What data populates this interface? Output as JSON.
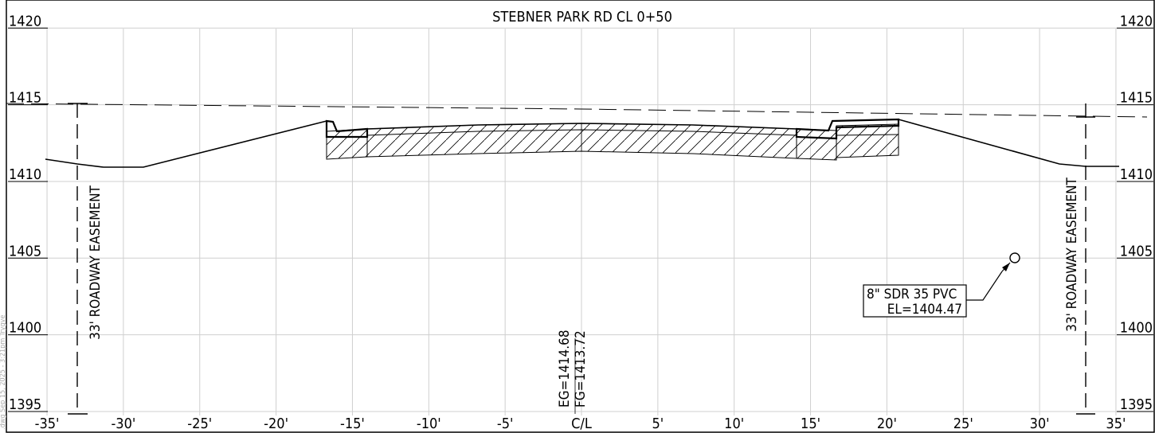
{
  "title": "STEBNER PARK RD CL 0+50",
  "grid": {
    "x_offsets": [
      -35,
      -30,
      -25,
      -20,
      -15,
      -10,
      -5,
      0,
      5,
      10,
      15,
      20,
      25,
      30,
      35
    ],
    "x_labels": [
      "-35'",
      "-30'",
      "-25'",
      "-20'",
      "-15'",
      "-10'",
      "-5'",
      "C/L",
      "5'",
      "10'",
      "15'",
      "20'",
      "25'",
      "30'",
      "35'"
    ],
    "elevations": [
      1395,
      1400,
      1405,
      1410,
      1415,
      1420
    ],
    "elev_labels": [
      "1395",
      "1400",
      "1405",
      "1410",
      "1415",
      "1420"
    ]
  },
  "centerline": {
    "eg_label": "EG=1414.68",
    "fg_label": "FG=1413.72"
  },
  "easement": {
    "left_label": "33' ROADWAY EASEMENT",
    "right_label": "33' ROADWAY EASEMENT"
  },
  "pipe": {
    "line1": "8\" SDR 35 PVC",
    "line2": "EL=1404.47",
    "offset": 28.3,
    "elevation": 1404.47
  },
  "margin_text": ".dwg   Sep 15, 2025 - 3:21pm   Trygve",
  "colors": {
    "grid": "#cfcfcf",
    "line": "#000000"
  }
}
